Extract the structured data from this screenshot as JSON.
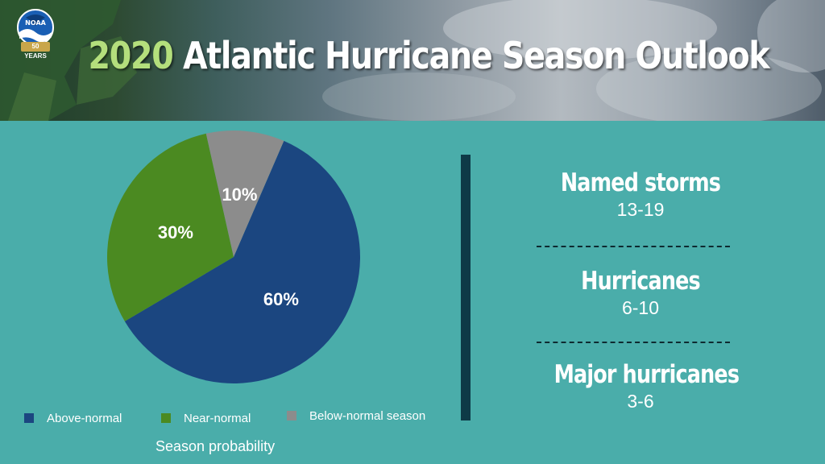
{
  "header": {
    "title_year": "2020",
    "title_rest": "Atlantic Hurricane Season Outlook",
    "logo": {
      "text": "NOAA",
      "badge": "50 YEARS",
      "icon": "noaa-logo-icon"
    }
  },
  "chart_data": {
    "type": "pie",
    "title": "",
    "caption": "Season probability",
    "slices": [
      {
        "label": "Above-normal",
        "value": 60,
        "display": "60%",
        "color": "#1b4680"
      },
      {
        "label": "Near-normal",
        "value": 30,
        "display": "30%",
        "color": "#4b8a21"
      },
      {
        "label": "Below-normal season",
        "value": 10,
        "display": "10%",
        "color": "#8c8c8c"
      }
    ],
    "legend_position": "bottom"
  },
  "stats": [
    {
      "name": "Named storms",
      "value": "13-19"
    },
    {
      "name": "Hurricanes",
      "value": "6-10"
    },
    {
      "name": "Major hurricanes",
      "value": "3-6"
    }
  ],
  "colors": {
    "background": "#4aadaa",
    "divider": "#0e3a47",
    "year_accent": "#b4df7c"
  }
}
